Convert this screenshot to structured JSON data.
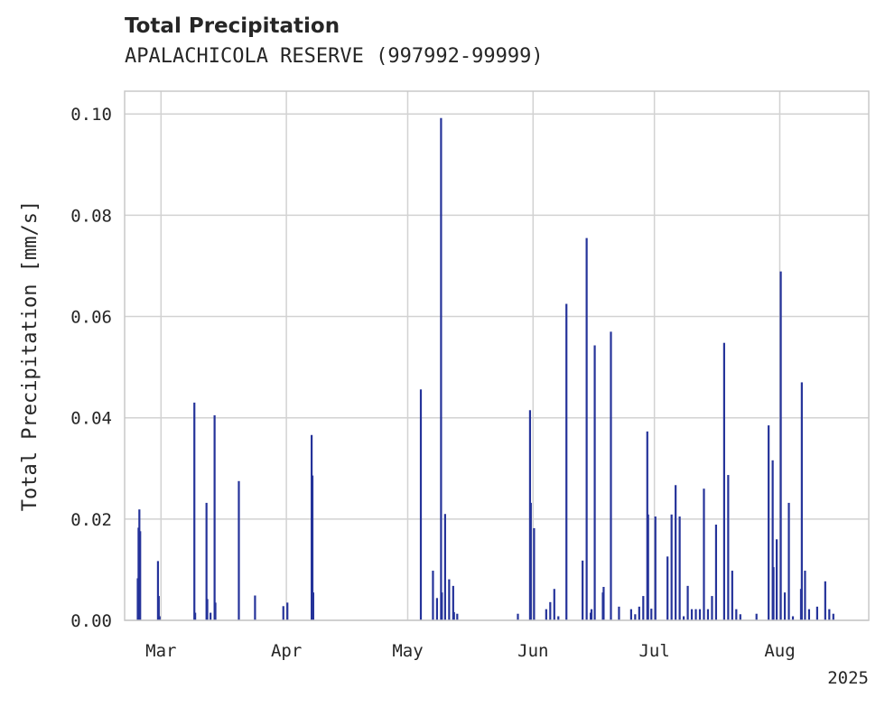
{
  "chart_data": {
    "type": "bar",
    "title": "Total Precipitation",
    "subtitle": "APALACHICOLA RESERVE (997992-99999)",
    "ylabel": "Total Precipitation [mm/s]",
    "xlabel": "",
    "x_offset_label": "2025",
    "xlim": [
      "2025-02-20",
      "2025-08-23"
    ],
    "ylim": [
      0,
      0.1045
    ],
    "yticks": [
      0.0,
      0.02,
      0.04,
      0.06,
      0.08,
      0.1
    ],
    "ytick_labels": [
      "0.00",
      "0.02",
      "0.04",
      "0.06",
      "0.08",
      "0.10"
    ],
    "xticks": [
      "2025-03-01",
      "2025-04-01",
      "2025-05-01",
      "2025-06-01",
      "2025-07-01",
      "2025-08-01"
    ],
    "xtick_labels": [
      "Mar",
      "Apr",
      "May",
      "Jun",
      "Jul",
      "Aug"
    ],
    "grid": true,
    "color": "#25339a",
    "series": [
      {
        "x": [
          "2025-02-23",
          "2025-02-23",
          "2025-02-23",
          "2025-02-23",
          "2025-02-28",
          "2025-02-28",
          "2025-02-28",
          "2025-03-09",
          "2025-03-09",
          "2025-03-12",
          "2025-03-12",
          "2025-03-13",
          "2025-03-14",
          "2025-03-14",
          "2025-03-20",
          "2025-03-24",
          "2025-03-31",
          "2025-04-01",
          "2025-04-07",
          "2025-04-07",
          "2025-04-07",
          "2025-05-04",
          "2025-05-07",
          "2025-05-08",
          "2025-05-09",
          "2025-05-09",
          "2025-05-10",
          "2025-05-11",
          "2025-05-12",
          "2025-05-12",
          "2025-05-13",
          "2025-05-28",
          "2025-05-31",
          "2025-05-31",
          "2025-06-01",
          "2025-06-04",
          "2025-06-05",
          "2025-06-06",
          "2025-06-07",
          "2025-06-09",
          "2025-06-13",
          "2025-06-14",
          "2025-06-15",
          "2025-06-15",
          "2025-06-16",
          "2025-06-18",
          "2025-06-18",
          "2025-06-20",
          "2025-06-22",
          "2025-06-25",
          "2025-06-26",
          "2025-06-27",
          "2025-06-28",
          "2025-06-29",
          "2025-06-29",
          "2025-06-30",
          "2025-07-01",
          "2025-07-04",
          "2025-07-05",
          "2025-07-06",
          "2025-07-07",
          "2025-07-08",
          "2025-07-09",
          "2025-07-10",
          "2025-07-11",
          "2025-07-12",
          "2025-07-13",
          "2025-07-14",
          "2025-07-15",
          "2025-07-16",
          "2025-07-18",
          "2025-07-19",
          "2025-07-20",
          "2025-07-21",
          "2025-07-22",
          "2025-07-26",
          "2025-07-29",
          "2025-07-30",
          "2025-07-30",
          "2025-07-31",
          "2025-08-01",
          "2025-08-02",
          "2025-08-03",
          "2025-08-04",
          "2025-08-06",
          "2025-08-06",
          "2025-08-07",
          "2025-08-08",
          "2025-08-10",
          "2025-08-12",
          "2025-08-13",
          "2025-08-14"
        ],
        "values": [
          0.0083,
          0.0183,
          0.0219,
          0.0176,
          0.0117,
          0.0048,
          0.0008,
          0.043,
          0.0015,
          0.0232,
          0.0042,
          0.0015,
          0.0405,
          0.0035,
          0.0275,
          0.0049,
          0.0028,
          0.0035,
          0.0366,
          0.0286,
          0.0055,
          0.0456,
          0.0098,
          0.0044,
          0.0992,
          0.0055,
          0.021,
          0.0081,
          0.0068,
          0.0016,
          0.0013,
          0.0013,
          0.0415,
          0.0232,
          0.0182,
          0.0022,
          0.0036,
          0.0062,
          0.0008,
          0.0625,
          0.0118,
          0.0755,
          0.0015,
          0.0022,
          0.0543,
          0.0055,
          0.0066,
          0.057,
          0.0027,
          0.0022,
          0.0012,
          0.0027,
          0.0048,
          0.0373,
          0.0209,
          0.0023,
          0.0205,
          0.0126,
          0.0209,
          0.0267,
          0.0205,
          0.0008,
          0.0068,
          0.0022,
          0.0022,
          0.0022,
          0.026,
          0.0022,
          0.0048,
          0.0189,
          0.0548,
          0.0287,
          0.0098,
          0.0022,
          0.0012,
          0.0013,
          0.0385,
          0.0316,
          0.0105,
          0.016,
          0.0689,
          0.0055,
          0.0232,
          0.0008,
          0.0062,
          0.047,
          0.0098,
          0.0022,
          0.0027,
          0.0077,
          0.0022,
          0.0013
        ]
      }
    ]
  }
}
